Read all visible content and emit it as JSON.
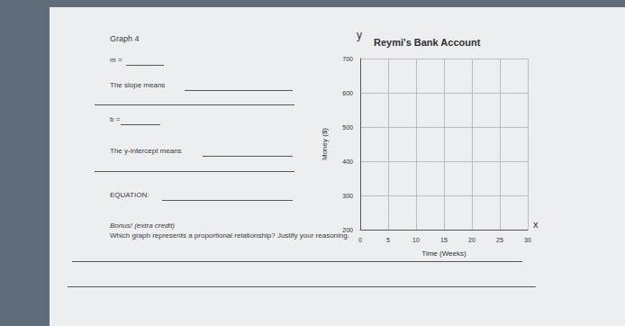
{
  "worksheet": {
    "heading": "Graph 4",
    "prompts": [
      "m =",
      "The slope means",
      "b =",
      "The y-intercept means",
      "EQUATION:"
    ],
    "bonus": "Bonus! (extra credit)",
    "question": "Which graph represents a proportional relationship? Justify your reasoning."
  },
  "chart_data": {
    "type": "line",
    "title": "Reymi's Bank Account",
    "x_label": "Time (Weeks)",
    "y_label": "Money ($)",
    "annotations": [
      "y",
      "x"
    ],
    "x": [],
    "values": [],
    "color": "#333333",
    "xlim": [
      0,
      30
    ],
    "xticks": [
      0,
      5,
      10,
      15,
      20,
      25,
      30
    ],
    "ylim": [
      200,
      700
    ],
    "yticks": [
      200,
      300,
      400,
      500,
      600,
      700
    ],
    "grid": true
  }
}
